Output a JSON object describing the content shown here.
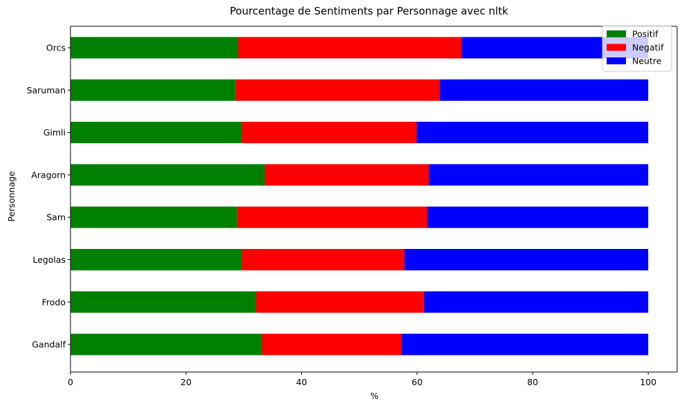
{
  "chart_data": {
    "type": "bar",
    "orientation": "horizontal",
    "stacked": true,
    "title": "Pourcentage de Sentiments par Personnage avec nltk",
    "xlabel": "%",
    "ylabel": "Personnage",
    "xlim": [
      0,
      105
    ],
    "xticks": [
      0,
      20,
      40,
      60,
      80,
      100
    ],
    "grid": false,
    "legend_position": "top-right",
    "categories": [
      "Gandalf",
      "Frodo",
      "Legolas",
      "Sam",
      "Aragorn",
      "Gimli",
      "Saruman",
      "Orcs"
    ],
    "series": [
      {
        "name": "Positif",
        "color": "#008000",
        "values": [
          33.0,
          32.1,
          29.6,
          28.8,
          33.6,
          29.6,
          28.5,
          29.0
        ]
      },
      {
        "name": "Negatif",
        "color": "#ff0000",
        "values": [
          24.3,
          29.1,
          28.2,
          32.9,
          28.4,
          30.3,
          35.4,
          38.7
        ]
      },
      {
        "name": "Neutre",
        "color": "#0000ff",
        "values": [
          42.7,
          38.8,
          42.2,
          38.3,
          38.0,
          40.1,
          36.1,
          32.3
        ]
      }
    ]
  }
}
